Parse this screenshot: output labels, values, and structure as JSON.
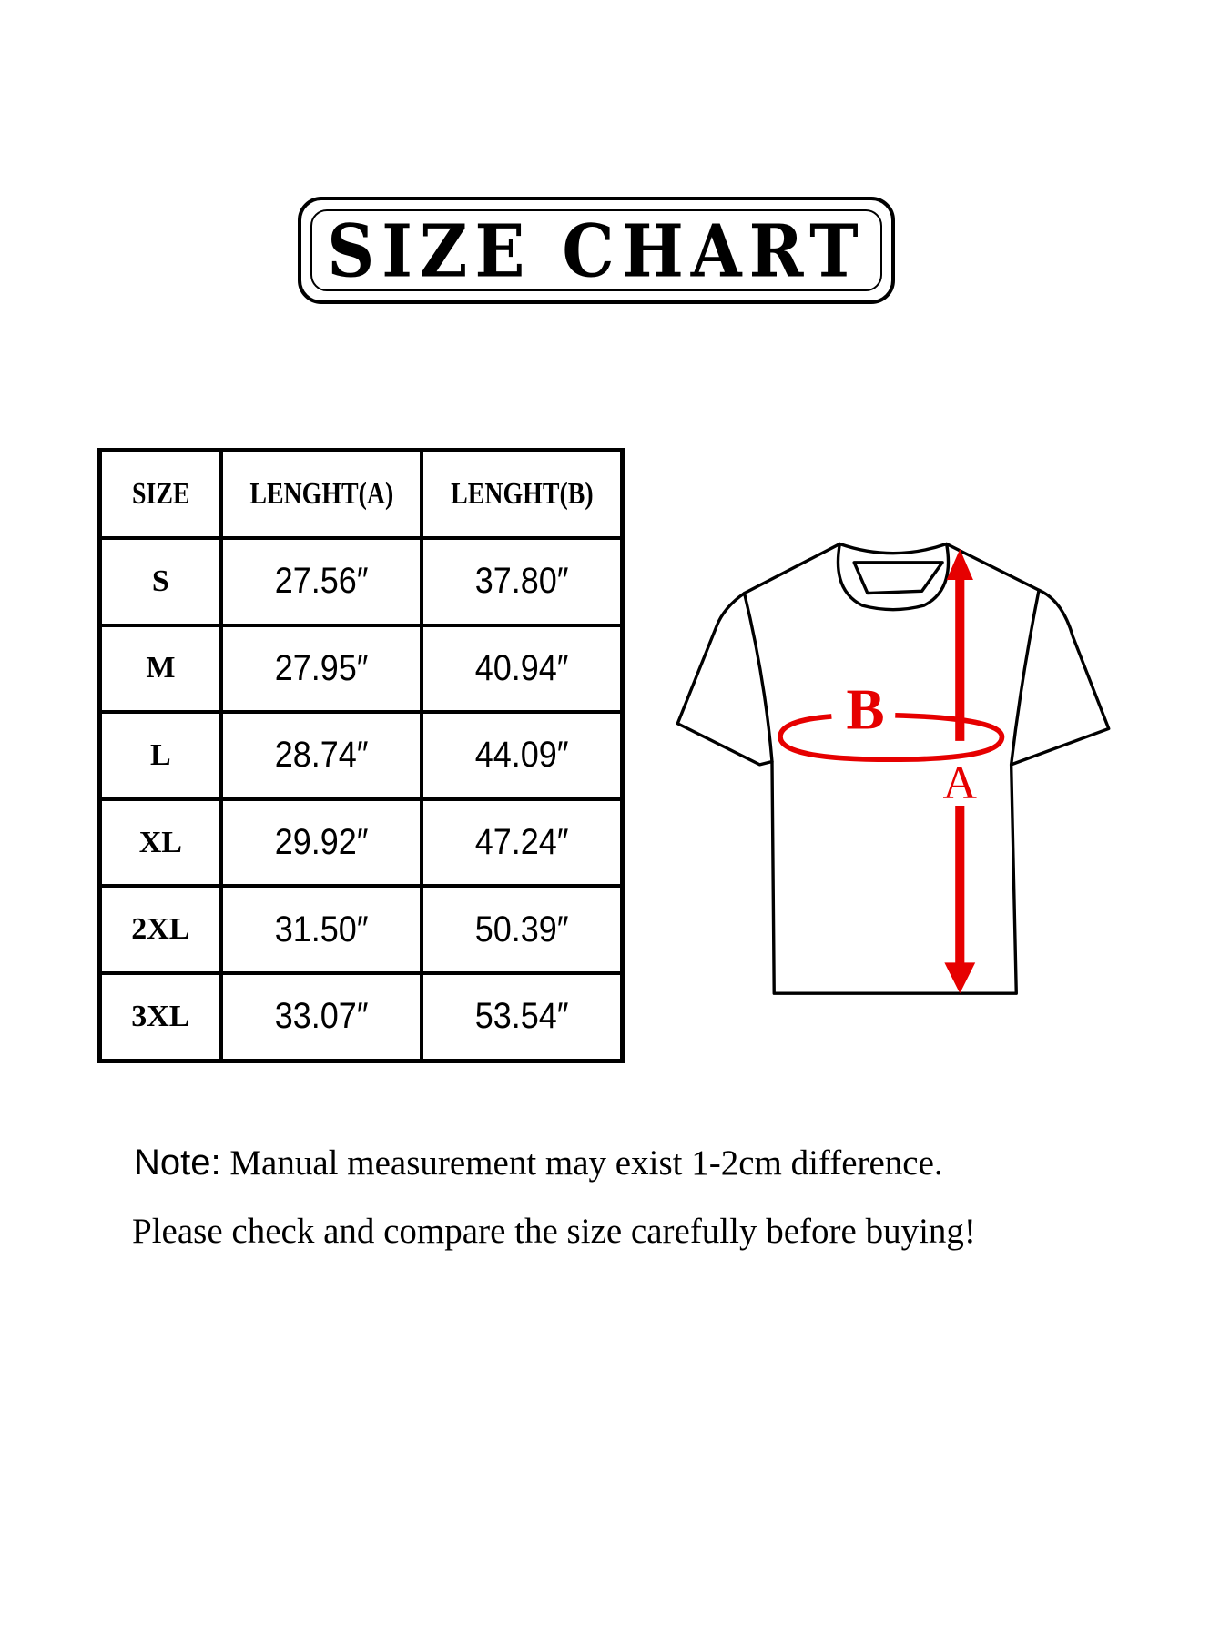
{
  "title": "SIZE CHART",
  "table": {
    "headers": [
      "SIZE",
      "LENGHT(A)",
      "LENGHT(B)"
    ],
    "rows": [
      {
        "size": "S",
        "a": "27.56″",
        "b": "37.80″"
      },
      {
        "size": "M",
        "a": "27.95″",
        "b": "40.94″"
      },
      {
        "size": "L",
        "a": "28.74″",
        "b": "44.09″"
      },
      {
        "size": "XL",
        "a": "29.92″",
        "b": "47.24″"
      },
      {
        "size": "2XL",
        "a": "31.50″",
        "b": "50.39″"
      },
      {
        "size": "3XL",
        "a": "33.07″",
        "b": "53.54″"
      }
    ]
  },
  "diagram": {
    "label_a": "A",
    "label_b": "B",
    "accent_color": "#e60000"
  },
  "note": {
    "label": "Note:",
    "line1": "Manual measurement may exist 1-2cm difference.",
    "line2": "Please check and compare the size carefully before buying!"
  }
}
